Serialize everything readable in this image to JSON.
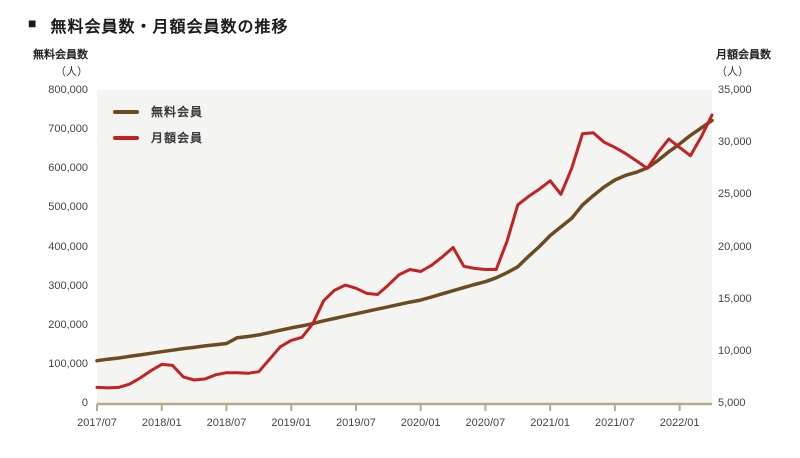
{
  "title": {
    "bullet": "■",
    "text": "無料会員数・月額会員数の推移"
  },
  "left_axis": {
    "title": "無料会員数",
    "unit": "（人）",
    "ticks": [
      "800,000",
      "700,000",
      "600,000",
      "500,000",
      "400,000",
      "300,000",
      "200,000",
      "100,000",
      "0"
    ]
  },
  "right_axis": {
    "title": "月額会員数",
    "unit": "（人）",
    "ticks": [
      "35,000",
      "30,000",
      "25,000",
      "20,000",
      "15,000",
      "10,000",
      "5,000"
    ]
  },
  "x_axis": {
    "ticks": [
      "2017/07",
      "2018/01",
      "2018/07",
      "2019/01",
      "2019/07",
      "2020/01",
      "2020/07",
      "2021/01",
      "2021/07",
      "2022/01"
    ]
  },
  "legend": {
    "items": [
      {
        "label": "無料会員",
        "color": "#6d4b21"
      },
      {
        "label": "月額会員",
        "color": "#c32222"
      }
    ]
  },
  "colors": {
    "free_line": "#6d4b21",
    "monthly_line": "#c32222",
    "axis": "#b9a887",
    "plot_bg": "#f4f4f2",
    "tick_text": "#454545"
  },
  "chart_data": {
    "type": "line",
    "title": "無料会員数・月額会員数の推移",
    "x": [
      "2017/07",
      "2017/08",
      "2017/09",
      "2017/10",
      "2017/11",
      "2017/12",
      "2018/01",
      "2018/02",
      "2018/03",
      "2018/04",
      "2018/05",
      "2018/06",
      "2018/07",
      "2018/08",
      "2018/09",
      "2018/10",
      "2018/11",
      "2018/12",
      "2019/01",
      "2019/02",
      "2019/03",
      "2019/04",
      "2019/05",
      "2019/06",
      "2019/07",
      "2019/08",
      "2019/09",
      "2019/10",
      "2019/11",
      "2019/12",
      "2020/01",
      "2020/02",
      "2020/03",
      "2020/04",
      "2020/05",
      "2020/06",
      "2020/07",
      "2020/08",
      "2020/09",
      "2020/10",
      "2020/11",
      "2020/12",
      "2021/01",
      "2021/02",
      "2021/03",
      "2021/04",
      "2021/05",
      "2021/06",
      "2021/07",
      "2021/08",
      "2021/09",
      "2021/10",
      "2021/11",
      "2021/12",
      "2022/01",
      "2022/02",
      "2022/03",
      "2022/04"
    ],
    "series": [
      {
        "name": "無料会員",
        "axis": "left",
        "values": [
          108000,
          112000,
          115000,
          119000,
          123000,
          127000,
          131000,
          135000,
          139000,
          142000,
          146000,
          149000,
          152000,
          167000,
          170000,
          174000,
          180000,
          186000,
          192000,
          197000,
          203000,
          210000,
          216000,
          222000,
          228000,
          234000,
          240000,
          246000,
          252000,
          258000,
          263000,
          271000,
          279000,
          287000,
          295000,
          303000,
          310000,
          320000,
          333000,
          348000,
          375000,
          400000,
          428000,
          450000,
          472000,
          506000,
          530000,
          552000,
          570000,
          582000,
          590000,
          601000,
          620000,
          642000,
          662000,
          684000,
          703000,
          722000
        ]
      },
      {
        "name": "月額会員",
        "axis": "right",
        "values": [
          6500,
          6450,
          6500,
          6800,
          7400,
          8100,
          8700,
          8600,
          7500,
          7200,
          7300,
          7700,
          7900,
          7900,
          7850,
          8000,
          9200,
          10400,
          11000,
          11300,
          12600,
          14800,
          15800,
          16300,
          16000,
          15500,
          15400,
          16300,
          17300,
          17800,
          17600,
          18200,
          19000,
          19900,
          18100,
          17900,
          17800,
          17800,
          20500,
          24000,
          24800,
          25500,
          26300,
          25000,
          27500,
          30800,
          30900,
          30000,
          29500,
          28900,
          28200,
          27500,
          29000,
          30300,
          29500,
          28700,
          30500,
          32600
        ]
      }
    ],
    "left_ylim": [
      0,
      800000
    ],
    "right_ylim": [
      5000,
      35000
    ],
    "left_ylabel": "無料会員数（人）",
    "right_ylabel": "月額会員数（人）",
    "grid": false,
    "legend_position": "top-left-inside"
  }
}
